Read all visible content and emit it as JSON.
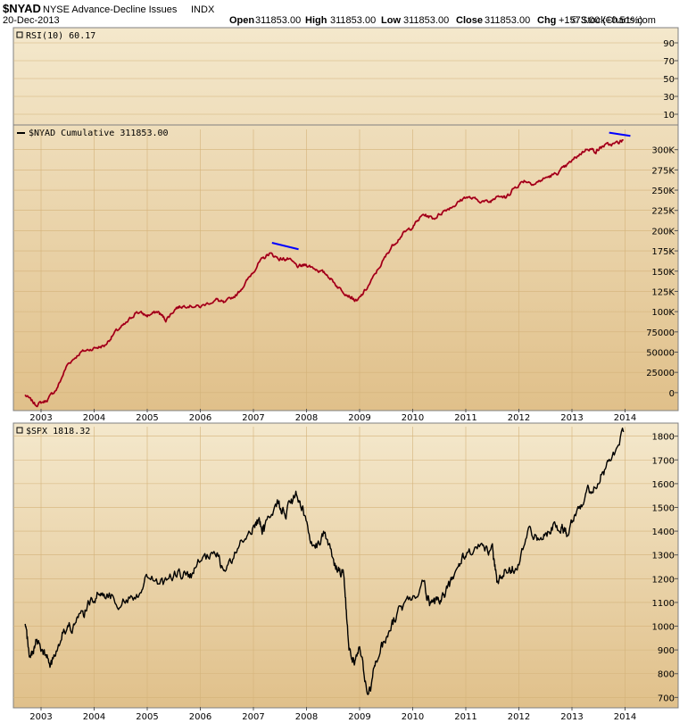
{
  "header": {
    "symbol": "$NYAD",
    "name": "NYSE Advance-Decline Issues",
    "exchange": "INDX",
    "date": "20-Dec-2013",
    "open_label": "Open",
    "open_value": "311853.00",
    "high_label": "High",
    "high_value": "311853.00",
    "low_label": "Low",
    "low_value": "311853.00",
    "close_label": "Close",
    "close_value": "311853.00",
    "chg_label": "Chg",
    "chg_value": "+1573.00 (+0.51%)",
    "brand": "© StockCharts.com"
  },
  "colors": {
    "bg_light": "#f4e8cc",
    "bg_dark": "#e0c08a",
    "nyad_line": "#c00020",
    "spx_line": "#000000",
    "divergence": "#0000ff",
    "border": "#808080"
  },
  "chart_data": [
    {
      "type": "line",
      "title": "RSI(10) 60.17",
      "yticks": [
        90,
        70,
        50,
        30,
        10
      ],
      "ylim": [
        0,
        100
      ],
      "series": [
        {
          "name": "RSI(10)",
          "last": 60.17
        }
      ]
    },
    {
      "type": "line",
      "title": "$NYAD Cumulative 311853.00",
      "ylim": [
        -20000,
        325000
      ],
      "yticks": [
        0,
        25000,
        50000,
        75000,
        100000,
        125000,
        150000,
        175000,
        200000,
        225000,
        250000,
        275000,
        300000
      ],
      "ytick_labels": [
        "0",
        "25000",
        "50000",
        "75000",
        "100K",
        "125K",
        "150K",
        "175K",
        "200K",
        "225K",
        "250K",
        "275K",
        "300K"
      ],
      "xticks": [
        "2003",
        "2004",
        "2005",
        "2006",
        "2007",
        "2008",
        "2009",
        "2010",
        "2011",
        "2012",
        "2013",
        "2014"
      ],
      "series": [
        {
          "name": "$NYAD Cumulative",
          "x": [
            2002.7,
            2002.9,
            2003.1,
            2003.3,
            2003.5,
            2003.75,
            2004.0,
            2004.2,
            2004.4,
            2004.6,
            2004.8,
            2005.0,
            2005.2,
            2005.35,
            2005.55,
            2005.75,
            2006.0,
            2006.3,
            2006.45,
            2006.7,
            2006.9,
            2007.1,
            2007.3,
            2007.5,
            2007.65,
            2007.85,
            2008.0,
            2008.2,
            2008.4,
            2008.6,
            2008.8,
            2008.95,
            2009.15,
            2009.4,
            2009.6,
            2009.8,
            2010.0,
            2010.2,
            2010.4,
            2010.6,
            2010.8,
            2011.0,
            2011.2,
            2011.45,
            2011.6,
            2011.75,
            2011.9,
            2012.1,
            2012.3,
            2012.5,
            2012.7,
            2012.9,
            2013.1,
            2013.3,
            2013.45,
            2013.6,
            2013.8,
            2013.97
          ],
          "values": [
            -3000,
            -15000,
            -10000,
            5000,
            35000,
            50000,
            55000,
            58000,
            75000,
            85000,
            100000,
            95000,
            100000,
            90000,
            105000,
            108000,
            106000,
            115000,
            110000,
            122000,
            140000,
            160000,
            172000,
            165000,
            165000,
            155000,
            158000,
            152000,
            145000,
            130000,
            120000,
            112000,
            130000,
            158000,
            180000,
            195000,
            205000,
            220000,
            215000,
            225000,
            232000,
            242000,
            238000,
            235000,
            245000,
            240000,
            252000,
            262000,
            258000,
            265000,
            270000,
            280000,
            292000,
            302000,
            298000,
            305000,
            307000,
            311853
          ]
        }
      ],
      "annotations": [
        {
          "type": "divergence",
          "x": [
            2007.35,
            2007.85
          ],
          "values": [
            185000,
            177000
          ]
        },
        {
          "type": "divergence",
          "x": [
            2013.7,
            2014.1
          ],
          "values": [
            321000,
            317000
          ]
        }
      ]
    },
    {
      "type": "line",
      "title": "$SPX 1818.32",
      "ylim": [
        660,
        1840
      ],
      "yticks": [
        700,
        800,
        900,
        1000,
        1100,
        1200,
        1300,
        1400,
        1500,
        1600,
        1700,
        1800
      ],
      "xticks": [
        "2003",
        "2004",
        "2005",
        "2006",
        "2007",
        "2008",
        "2009",
        "2010",
        "2011",
        "2012",
        "2013",
        "2014"
      ],
      "series": [
        {
          "name": "$SPX",
          "x": [
            2002.7,
            2002.8,
            2002.9,
            2003.05,
            2003.2,
            2003.4,
            2003.6,
            2003.8,
            2004.0,
            2004.2,
            2004.5,
            2004.8,
            2005.0,
            2005.3,
            2005.6,
            2005.8,
            2006.0,
            2006.3,
            2006.45,
            2006.7,
            2006.95,
            2007.1,
            2007.2,
            2007.45,
            2007.6,
            2007.8,
            2007.95,
            2008.15,
            2008.35,
            2008.55,
            2008.7,
            2008.8,
            2008.9,
            2009.0,
            2009.17,
            2009.3,
            2009.5,
            2009.7,
            2009.9,
            2010.2,
            2010.35,
            2010.5,
            2010.65,
            2010.85,
            2011.0,
            2011.3,
            2011.5,
            2011.6,
            2011.8,
            2011.95,
            2012.2,
            2012.4,
            2012.6,
            2012.8,
            2012.9,
            2013.1,
            2013.3,
            2013.5,
            2013.7,
            2013.97
          ],
          "values": [
            1000,
            860,
            940,
            880,
            840,
            980,
            1000,
            1050,
            1130,
            1140,
            1100,
            1130,
            1210,
            1180,
            1230,
            1200,
            1270,
            1300,
            1230,
            1320,
            1410,
            1440,
            1400,
            1530,
            1470,
            1550,
            1470,
            1330,
            1400,
            1250,
            1220,
            900,
            850,
            900,
            700,
            850,
            950,
            1050,
            1100,
            1180,
            1080,
            1100,
            1150,
            1250,
            1300,
            1330,
            1320,
            1180,
            1250,
            1250,
            1400,
            1350,
            1420,
            1420,
            1400,
            1500,
            1560,
            1620,
            1680,
            1818
          ]
        }
      ]
    }
  ]
}
